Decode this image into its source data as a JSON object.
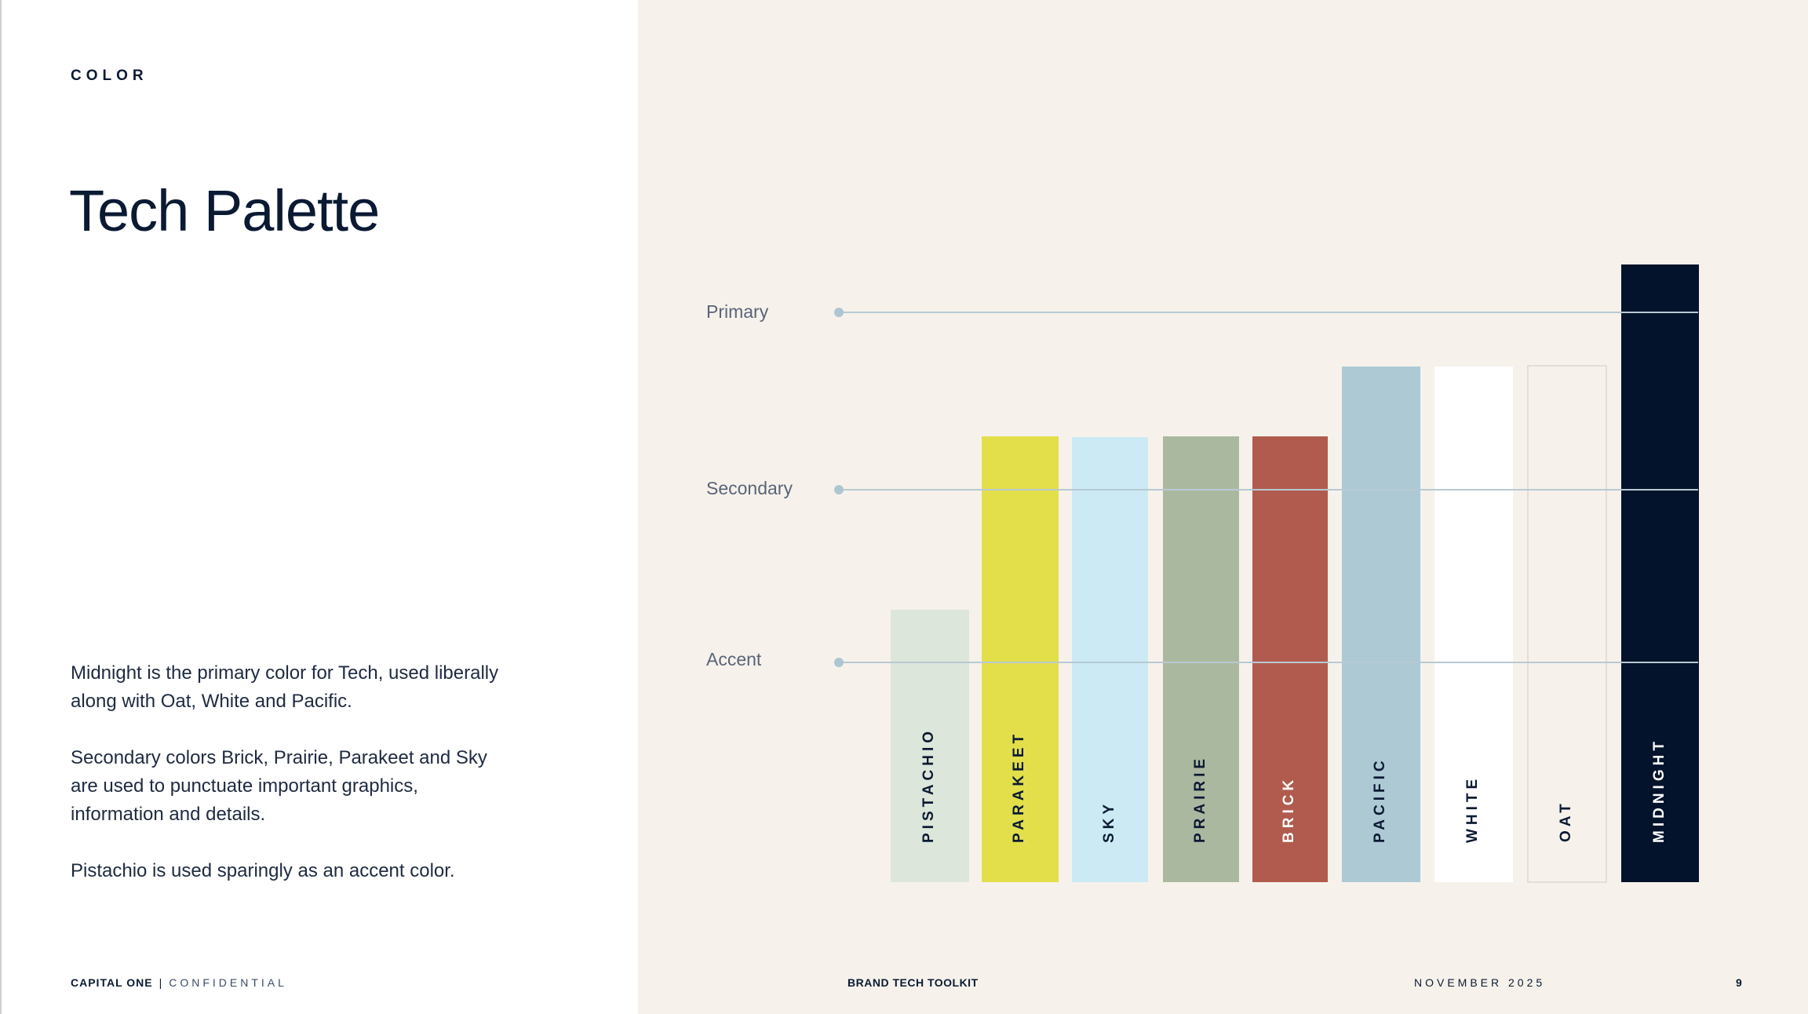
{
  "section_label": "COLOR",
  "title": "Tech Palette",
  "body": [
    "Midnight is the primary color for Tech, used liberally along with Oat, White and Pacific.",
    "Secondary colors Brick, Prairie, Parakeet and Sky are used to punctuate important graphics, information and details.",
    "Pistachio is used sparingly as an accent color."
  ],
  "levels": {
    "primary": "Primary",
    "secondary": "Secondary",
    "accent": "Accent"
  },
  "swatches": [
    {
      "name": "PISTACHIO",
      "color": "#dce6da",
      "text_color": "#0b1a33",
      "tier": "accent"
    },
    {
      "name": "PARAKEET",
      "color": "#e2df4a",
      "text_color": "#0b1a33",
      "tier": "secondary"
    },
    {
      "name": "SKY",
      "color": "#cbeaf3",
      "text_color": "#0b1a33",
      "tier": "secondary"
    },
    {
      "name": "PRAIRIE",
      "color": "#abb8a0",
      "text_color": "#0b1a33",
      "tier": "secondary"
    },
    {
      "name": "BRICK",
      "color": "#b15b4f",
      "text_color": "#ffffff",
      "tier": "secondary"
    },
    {
      "name": "PACIFIC",
      "color": "#adc9d4",
      "text_color": "#0b1a33",
      "tier": "primary"
    },
    {
      "name": "WHITE",
      "color": "#ffffff",
      "text_color": "#0b1a33",
      "tier": "primary"
    },
    {
      "name": "OAT",
      "color": "#f6f2eb",
      "text_color": "#0b1a33",
      "tier": "primary"
    },
    {
      "name": "MIDNIGHT",
      "color": "#03132b",
      "text_color": "#ffffff",
      "tier": "primary"
    }
  ],
  "footer": {
    "brand": "CAPITAL ONE",
    "separator": "|",
    "confidential": "CONFIDENTIAL",
    "toolkit": "BRAND TECH TOOLKIT",
    "date": "NOVEMBER 2025",
    "page": "9"
  }
}
